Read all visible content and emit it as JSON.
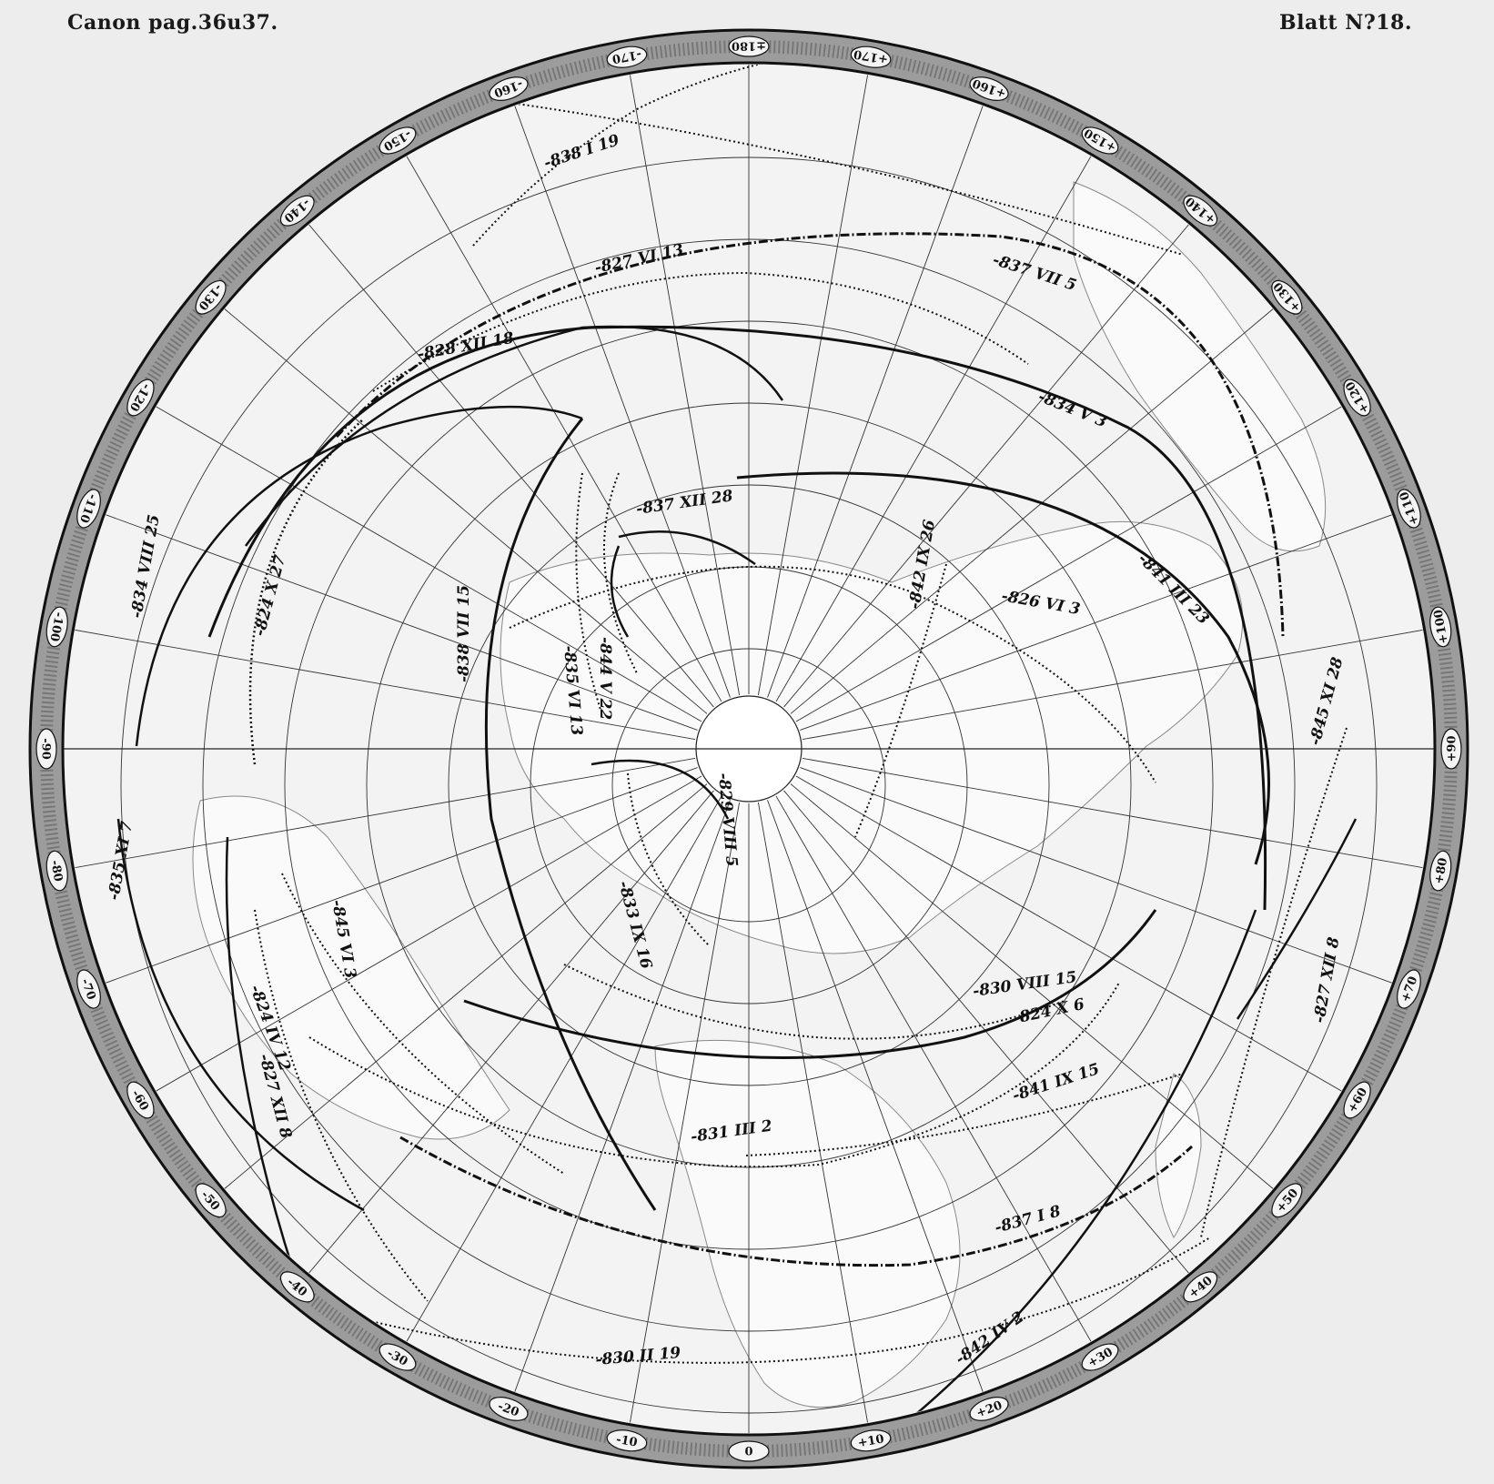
{
  "header": {
    "left": "Canon pag.36u37.",
    "right": "Blatt N?18."
  },
  "colors": {
    "paper": "#ededed",
    "ink": "#111111",
    "land": "#f7f7f7",
    "ring": "#9a9a9a"
  },
  "ring_labels": [
    "0",
    "+10",
    "+20",
    "+30",
    "+40",
    "+50",
    "+60",
    "+70",
    "+80",
    "+90",
    "+100",
    "+110",
    "+120",
    "+130",
    "+140",
    "+150",
    "+160",
    "+170",
    "±180",
    "-170",
    "-160",
    "-150",
    "-140",
    "-130",
    "-120",
    "-110",
    "-100",
    "-90",
    "-80",
    "-70",
    "-60",
    "-50",
    "-40",
    "-30",
    "-20",
    "-10"
  ],
  "eclipse_paths": [
    {
      "label": "-838 I 19"
    },
    {
      "label": "-837 VII 5"
    },
    {
      "label": "-827 VI 13"
    },
    {
      "label": "-828 XII 18"
    },
    {
      "label": "-834 V 3"
    },
    {
      "label": "-837 XII 28"
    },
    {
      "label": "-841 III 23"
    },
    {
      "label": "-826 VI 3"
    },
    {
      "label": "-842 IX 26"
    },
    {
      "label": "-834 VIII 25"
    },
    {
      "label": "-824 X 27"
    },
    {
      "label": "-835 VI 13"
    },
    {
      "label": "-844 V 22"
    },
    {
      "label": "-838 VII 15"
    },
    {
      "label": "-829 VIII 5"
    },
    {
      "label": "-845 XI 28"
    },
    {
      "label": "-835 XI 7"
    },
    {
      "label": "-845 VI 3"
    },
    {
      "label": "-833 IX 16"
    },
    {
      "label": "-830 VIII 15"
    },
    {
      "label": "-824 X 6"
    },
    {
      "label": "-824 IV 12"
    },
    {
      "label": "-827 XII 8"
    },
    {
      "label": "-827 XII 8"
    },
    {
      "label": "-841 IX 15"
    },
    {
      "label": "-831 III 2"
    },
    {
      "label": "-837 I 8"
    },
    {
      "label": "-830 II 19"
    },
    {
      "label": "-842 IV 2"
    }
  ]
}
